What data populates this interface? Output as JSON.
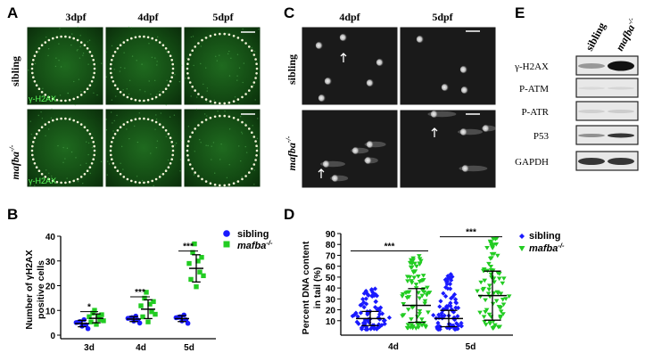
{
  "panels": {
    "A": {
      "letter": "A",
      "columns": [
        "3dpf",
        "4dpf",
        "5dpf"
      ],
      "rows": [
        "sibling",
        "mafba"
      ],
      "row_superscript": "-/-",
      "stain_label": "γ-H2AX"
    },
    "C": {
      "letter": "C",
      "columns": [
        "4dpf",
        "5dpf"
      ],
      "rows": [
        "sibling",
        "mafba"
      ],
      "row_superscript": "-/-"
    },
    "E": {
      "letter": "E",
      "lane_labels": [
        "sibling",
        "mafba"
      ],
      "lane_superscript": "-/-",
      "blot_rows": [
        "γ-H2AX",
        "P-ATM",
        "P-ATR",
        "P53",
        "GAPDH"
      ]
    }
  },
  "chart_data": [
    {
      "panel": "B",
      "type": "scatter",
      "ylabel": "Number of γH2AX positive cells",
      "categories": [
        "3d",
        "4d",
        "5d"
      ],
      "ylim": [
        0,
        40
      ],
      "yticks": [
        0,
        10,
        20,
        30,
        40
      ],
      "legend": "top-right",
      "series": [
        {
          "name": "sibling",
          "color": "#1a1aff",
          "marker": "circle",
          "points": [
            [
              3.5,
              5
            ],
            [
              5,
              4
            ],
            [
              3,
              6
            ],
            [
              4,
              3
            ],
            [
              6,
              5
            ],
            [
              7,
              4
            ],
            [
              3,
              2
            ]
          ],
          "mean": [
            4.7,
            6.5,
            6.7
          ],
          "sd": [
            1.3,
            1.0,
            1.2
          ]
        },
        {
          "name": "mafba",
          "superscript": "-/-",
          "color": "#22cc22",
          "marker": "square",
          "points": [
            [
              7,
              6
            ],
            [
              8,
              5
            ],
            [
              6,
              9
            ],
            [
              9,
              7
            ],
            [
              5,
              7
            ],
            [
              10,
              6
            ],
            [
              6,
              8
            ]
          ],
          "mean": [
            6.8,
            10.5,
            27.0
          ],
          "sd": [
            1.8,
            3.8,
            5.5
          ]
        }
      ],
      "significance": [
        "*",
        "***",
        "***"
      ]
    },
    {
      "panel": "D",
      "type": "scatter",
      "ylabel": "Percent DNA content in tail (%)",
      "categories": [
        "4d",
        "5d"
      ],
      "ylim": [
        0,
        90
      ],
      "yticks": [
        10,
        20,
        30,
        40,
        50,
        60,
        70,
        80,
        90
      ],
      "legend": "top-right",
      "series": [
        {
          "name": "sibling",
          "color": "#1a1aff",
          "marker": "diamond",
          "mean": [
            12,
            12
          ],
          "sd": [
            6.5,
            7.5
          ],
          "range": [
            [
              2,
              40
            ],
            [
              2,
              53
            ]
          ]
        },
        {
          "name": "mafba",
          "superscript": "-/-",
          "color": "#22cc22",
          "marker": "triangle-down",
          "mean": [
            24,
            33
          ],
          "sd": [
            15.5,
            22.5
          ],
          "range": [
            [
              3,
              72
            ],
            [
              3,
              89
            ]
          ]
        }
      ],
      "significance": [
        "***",
        "***"
      ]
    }
  ],
  "chart_B": {
    "letter": "B",
    "ylabel1": "Number of γH2AX",
    "ylabel2": "positive cells",
    "legend_sibling": "sibling",
    "legend_mut": "mafba",
    "legend_sup": "-/-"
  },
  "chart_D": {
    "letter": "D",
    "ylabel1": "Percent DNA content",
    "ylabel2": "in tail (%)",
    "legend_sibling": "sibling",
    "legend_mut": "mafba",
    "legend_sup": "-/-"
  }
}
